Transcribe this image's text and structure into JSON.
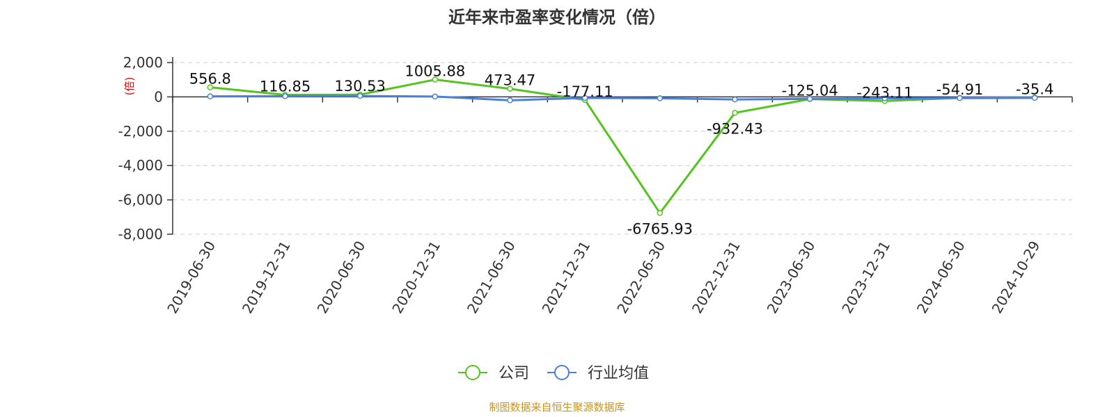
{
  "chart_data": {
    "type": "line",
    "title": "近年来市盈率变化情况（倍）",
    "ylabel": "(倍)",
    "xlabel": "",
    "ylim": [
      -8000,
      2000
    ],
    "yticks": [
      2000,
      0,
      -2000,
      -4000,
      -6000,
      -8000
    ],
    "ytick_labels": [
      "2,000",
      "0",
      "-2,000",
      "-4,000",
      "-6,000",
      "-8,000"
    ],
    "categories": [
      "2019-06-30",
      "2019-12-31",
      "2020-06-30",
      "2020-12-31",
      "2021-06-30",
      "2021-12-31",
      "2022-06-30",
      "2022-12-31",
      "2023-06-30",
      "2023-12-31",
      "2024-06-30",
      "2024-10-29"
    ],
    "grid": true,
    "legend_position": "bottom",
    "series": [
      {
        "name": "公司",
        "color": "#52c41a",
        "values": [
          556.8,
          116.85,
          130.53,
          1005.88,
          473.47,
          -177.11,
          -6765.93,
          -932.43,
          -125.04,
          -243.11,
          -54.91,
          -35.4
        ],
        "labels": [
          "556.8",
          "116.85",
          "130.53",
          "1005.88",
          "473.47",
          "-177.11",
          "-6765.93",
          "-932.43",
          "-125.04",
          "-243.11",
          "-54.91",
          "-35.4"
        ]
      },
      {
        "name": "行业均值",
        "color": "#4a7fe0",
        "values": [
          30,
          40,
          50,
          20,
          -200,
          -60,
          -80,
          -150,
          -120,
          -90,
          -70,
          -60
        ]
      }
    ]
  },
  "source": "制图数据来自恒生聚源数据库"
}
